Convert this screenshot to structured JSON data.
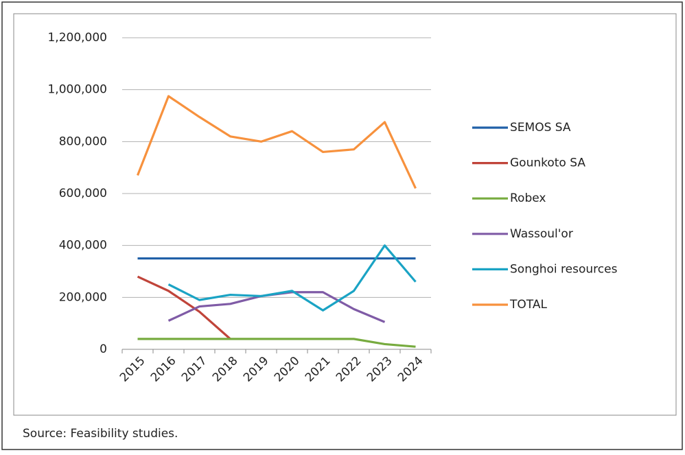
{
  "chart_data": {
    "type": "line",
    "source": "Source: Feasibility studies.",
    "categories": [
      "2015",
      "2016",
      "2017",
      "2018",
      "2019",
      "2020",
      "2021",
      "2022",
      "2023",
      "2024"
    ],
    "series": [
      {
        "name": "SEMOS SA",
        "color": "#2060a8",
        "values": [
          350000,
          350000,
          350000,
          350000,
          350000,
          350000,
          350000,
          350000,
          350000,
          350000
        ]
      },
      {
        "name": "Gounkoto SA",
        "color": "#c0443a",
        "values": [
          280000,
          225000,
          145000,
          40000,
          null,
          null,
          null,
          null,
          null,
          null
        ]
      },
      {
        "name": "Robex",
        "color": "#77ab3f",
        "values": [
          40000,
          40000,
          40000,
          40000,
          40000,
          40000,
          40000,
          40000,
          20000,
          10000
        ]
      },
      {
        "name": "Wassoul'or",
        "color": "#7f5ba6",
        "values": [
          null,
          110000,
          165000,
          175000,
          205000,
          220000,
          220000,
          155000,
          105000,
          null
        ]
      },
      {
        "name": "Songhoi resources",
        "color": "#1aa3c4",
        "values": [
          null,
          250000,
          190000,
          210000,
          205000,
          225000,
          150000,
          225000,
          400000,
          260000
        ]
      },
      {
        "name": "TOTAL",
        "color": "#f7913d",
        "values": [
          670000,
          975000,
          895000,
          820000,
          800000,
          840000,
          760000,
          770000,
          875000,
          620000
        ]
      }
    ],
    "ylim": [
      0,
      1200000
    ],
    "yticks": [
      0,
      {
        "value": 200000,
        "label": "200,000"
      },
      {
        "value": 400000,
        "label": "400,000"
      },
      {
        "value": 600000,
        "label": "600,000"
      },
      {
        "value": 800000,
        "label": "800,000"
      },
      {
        "value": 1000000,
        "label": "1,000,000"
      },
      {
        "value": 1200000,
        "label": "1,200,000"
      }
    ],
    "grid": true,
    "legend": "right"
  }
}
